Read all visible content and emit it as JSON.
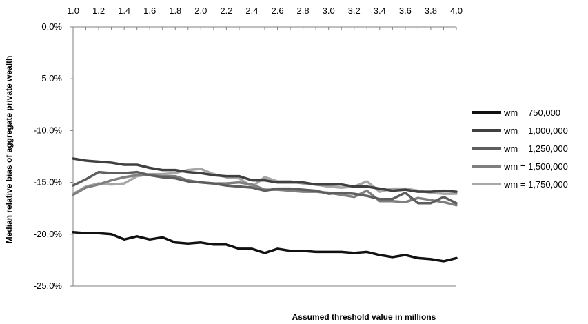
{
  "chart_data": {
    "type": "line",
    "title": "",
    "xlabel": "Assumed threshold value in millions",
    "ylabel": "Median relative bias of aggregate private wealth",
    "x_ticks": [
      "1.0",
      "1.2",
      "1.4",
      "1.6",
      "1.8",
      "2.0",
      "2.2",
      "2.4",
      "2.6",
      "2.8",
      "3.0",
      "3.2",
      "3.4",
      "3.6",
      "3.8",
      "4.0"
    ],
    "y_ticks": [
      "0.0%",
      "-5.0%",
      "-10.0%",
      "-15.0%",
      "-20.0%",
      "-25.0%"
    ],
    "xlim": [
      1.0,
      4.0
    ],
    "ylim": [
      -25.0,
      0.0
    ],
    "x_axis_position": "top",
    "grid": false,
    "legend_position": "right",
    "x": [
      1.0,
      1.1,
      1.2,
      1.3,
      1.4,
      1.5,
      1.6,
      1.7,
      1.8,
      1.9,
      2.0,
      2.1,
      2.2,
      2.3,
      2.4,
      2.5,
      2.6,
      2.7,
      2.8,
      2.9,
      3.0,
      3.1,
      3.2,
      3.3,
      3.4,
      3.5,
      3.6,
      3.7,
      3.8,
      3.9,
      4.0
    ],
    "series": [
      {
        "name": "wm = 750,000",
        "color": "#111111",
        "values": [
          -19.8,
          -19.9,
          -19.9,
          -20.0,
          -20.5,
          -20.2,
          -20.5,
          -20.3,
          -20.8,
          -20.9,
          -20.8,
          -21.0,
          -21.0,
          -21.4,
          -21.4,
          -21.8,
          -21.4,
          -21.6,
          -21.6,
          -21.7,
          -21.7,
          -21.7,
          -21.8,
          -21.7,
          -22.0,
          -22.2,
          -22.0,
          -22.3,
          -22.4,
          -22.6,
          -22.3
        ]
      },
      {
        "name": "wm = 1,000,000",
        "color": "#404040",
        "values": [
          -12.7,
          -12.9,
          -13.0,
          -13.1,
          -13.3,
          -13.3,
          -13.6,
          -13.8,
          -13.8,
          -14.0,
          -14.1,
          -14.3,
          -14.4,
          -14.4,
          -14.8,
          -14.8,
          -15.0,
          -15.0,
          -15.0,
          -15.2,
          -15.2,
          -15.2,
          -15.4,
          -15.4,
          -15.6,
          -15.8,
          -15.7,
          -15.9,
          -15.9,
          -15.8,
          -15.9
        ]
      },
      {
        "name": "wm = 1,250,000",
        "color": "#5e5e5e",
        "values": [
          -15.3,
          -14.7,
          -14.0,
          -14.1,
          -14.1,
          -14.0,
          -14.3,
          -14.5,
          -14.6,
          -14.9,
          -15.0,
          -15.1,
          -15.3,
          -15.4,
          -15.5,
          -15.8,
          -15.6,
          -15.6,
          -15.7,
          -15.8,
          -16.1,
          -16.0,
          -16.1,
          -16.3,
          -16.6,
          -16.6,
          -16.0,
          -17.0,
          -17.0,
          -16.4,
          -17.0
        ]
      },
      {
        "name": "wm = 1,500,000",
        "color": "#7f7f7f",
        "values": [
          -16.2,
          -15.5,
          -15.2,
          -14.8,
          -14.5,
          -14.3,
          -14.3,
          -14.4,
          -14.4,
          -14.8,
          -15.0,
          -15.1,
          -15.1,
          -15.0,
          -15.2,
          -15.7,
          -15.7,
          -15.8,
          -15.9,
          -15.9,
          -16.0,
          -16.2,
          -16.4,
          -15.8,
          -16.8,
          -16.8,
          -16.9,
          -16.5,
          -16.7,
          -16.9,
          -17.2
        ]
      },
      {
        "name": "wm = 1,750,000",
        "color": "#a6a6a6",
        "values": [
          -16.1,
          -15.4,
          -15.1,
          -15.2,
          -15.1,
          -14.4,
          -14.2,
          -14.2,
          -14.1,
          -13.8,
          -13.7,
          -14.2,
          -14.5,
          -14.6,
          -15.4,
          -14.5,
          -14.9,
          -14.9,
          -15.1,
          -15.2,
          -15.4,
          -15.5,
          -15.4,
          -14.9,
          -15.9,
          -15.6,
          -15.6,
          -15.8,
          -16.0,
          -16.1,
          -16.1
        ]
      }
    ]
  }
}
